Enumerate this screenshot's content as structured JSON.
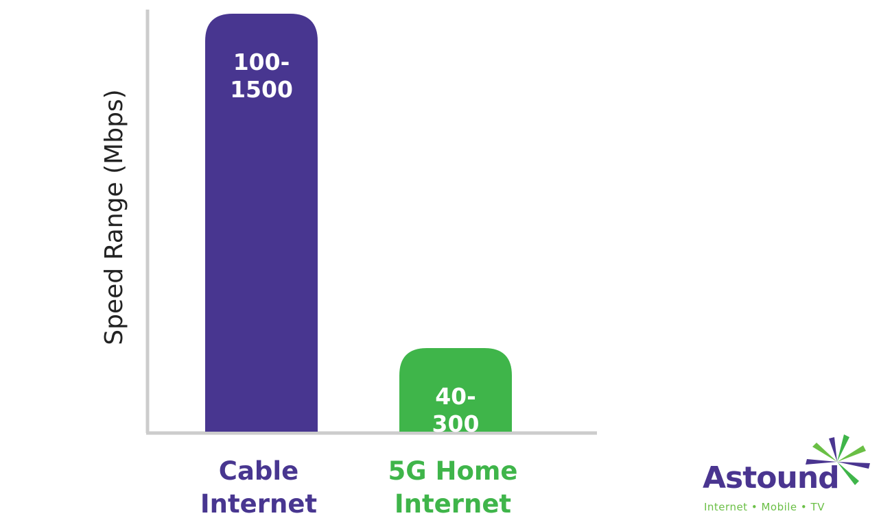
{
  "chart_data": {
    "type": "bar",
    "ylabel": "Speed Range (Mbps)",
    "xlabel": "",
    "categories": [
      "Cable Internet",
      "5G Home Internet"
    ],
    "category_lines": [
      [
        "Cable",
        "Internet"
      ],
      [
        "5G Home",
        "Internet"
      ]
    ],
    "value_ranges": [
      [
        100,
        1500
      ],
      [
        40,
        300
      ]
    ],
    "values": [
      1500,
      300
    ],
    "data_labels": [
      [
        "100-",
        "1500"
      ],
      [
        "40-",
        "300"
      ]
    ],
    "ylim": [
      0,
      1500
    ],
    "grid": false,
    "legend": "none",
    "colors": [
      "#483690",
      "#3fb54a"
    ],
    "category_label_colors": [
      "#483690",
      "#3fb54a"
    ],
    "axis_color": "#cccccc"
  },
  "logo": {
    "name": "Astound",
    "tagline": "Internet • Mobile • TV",
    "brand_color": "#4a3590",
    "tagline_color": "#6abf45",
    "burst_colors": [
      "#4a3590",
      "#3fb54a",
      "#6abf45"
    ]
  }
}
